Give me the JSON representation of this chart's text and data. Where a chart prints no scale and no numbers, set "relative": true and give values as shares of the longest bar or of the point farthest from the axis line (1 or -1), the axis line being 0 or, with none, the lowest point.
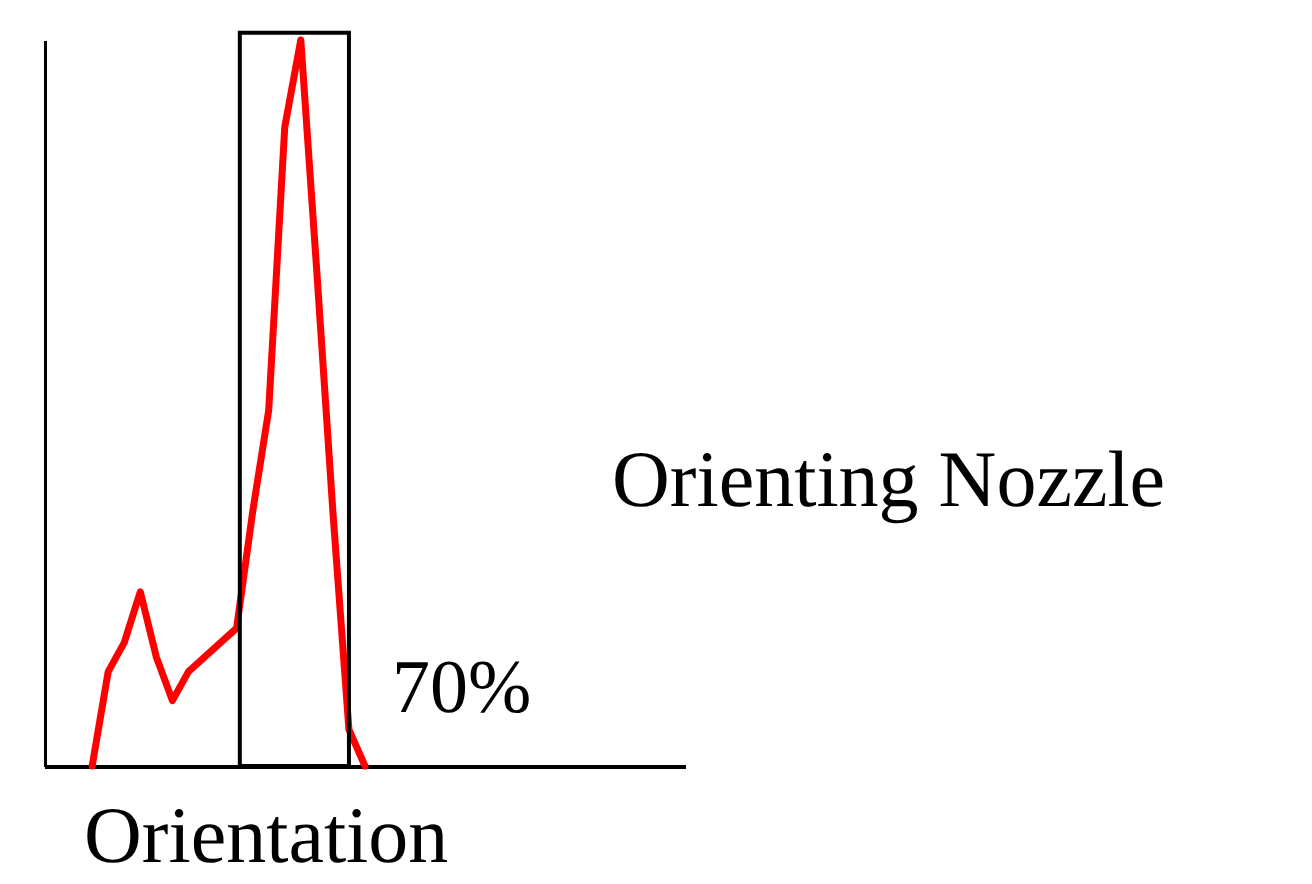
{
  "chart_data": {
    "type": "line",
    "relative": true,
    "xlabel": "Orientation",
    "annotations": [
      "Orienting Nozzle",
      "70%"
    ],
    "categories": [
      null,
      null,
      null,
      null,
      null,
      null,
      null,
      null,
      null,
      null,
      null,
      null,
      null,
      null,
      null,
      null,
      null,
      null,
      null,
      null,
      null,
      null,
      null,
      null,
      null,
      null,
      null,
      null,
      null,
      null,
      null,
      null,
      null,
      null,
      null,
      null,
      null,
      null,
      null,
      null,
      null
    ],
    "series": [
      {
        "color": "#ff0000",
        "values": [
          null,
          null,
          null,
          0,
          0.13,
          0.17,
          0.24,
          0.15,
          0.09,
          0.13,
          0.15,
          0.17,
          0.19,
          0.35,
          0.49,
          0.88,
          1,
          0.68,
          0.35,
          0.05,
          0,
          null,
          null,
          null,
          null,
          null,
          null,
          null,
          null,
          null,
          null,
          null,
          null,
          null,
          null,
          null,
          null,
          null,
          null,
          null,
          null
        ]
      }
    ],
    "marker": "none",
    "line_style": "solid"
  }
}
